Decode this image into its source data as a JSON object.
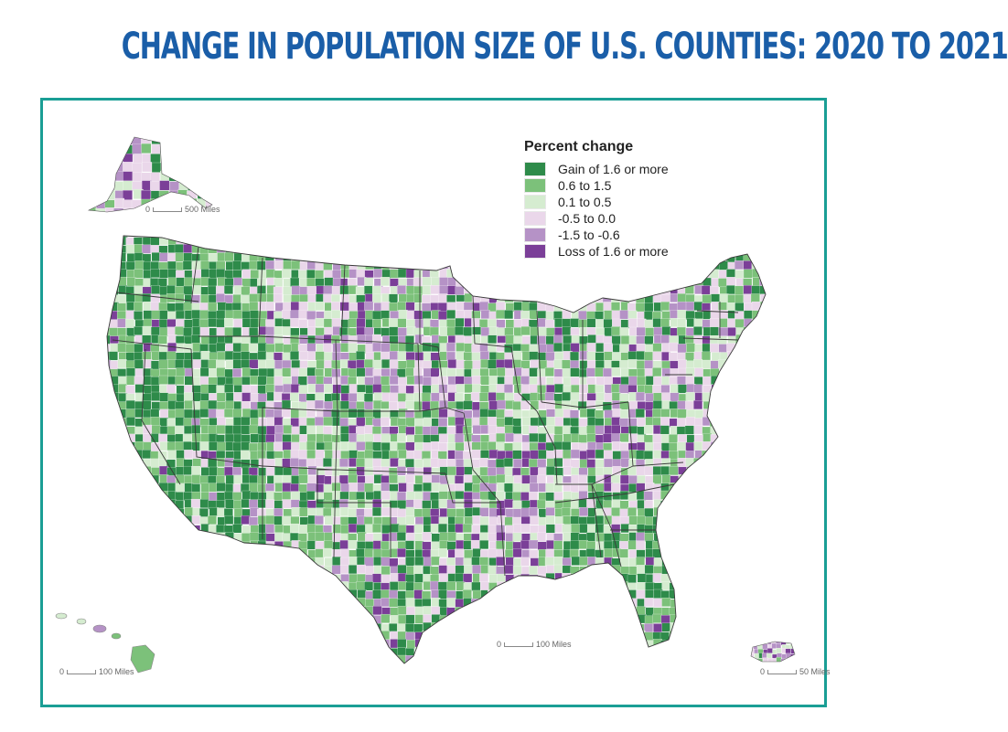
{
  "title": "CHANGE IN POPULATION SIZE OF U.S. COUNTIES: 2020 TO 2021",
  "colors": {
    "title": "#1a5ea8",
    "frame": "#1a9e95",
    "state_border": "#3a3a3a"
  },
  "legend": {
    "title": "Percent change",
    "items": [
      {
        "label": "Gain of 1.6 or more",
        "color": "#2e8b4a"
      },
      {
        "label": "0.6 to 1.5",
        "color": "#7cc17a"
      },
      {
        "label": "0.1 to 0.5",
        "color": "#d5ecd0"
      },
      {
        "label": "-0.5 to 0.0",
        "color": "#ead7ea"
      },
      {
        "label": "-1.5 to -0.6",
        "color": "#b592c6"
      },
      {
        "label": "Loss of 1.6 or more",
        "color": "#7b3f98"
      }
    ]
  },
  "scale_bars": {
    "alaska": {
      "zero": "0",
      "label": "500 Miles"
    },
    "hawaii": {
      "zero": "0",
      "label": "100 Miles"
    },
    "conus": {
      "zero": "0",
      "label": "100 Miles"
    },
    "puerto_rico": {
      "zero": "0",
      "label": "50 Miles"
    }
  }
}
